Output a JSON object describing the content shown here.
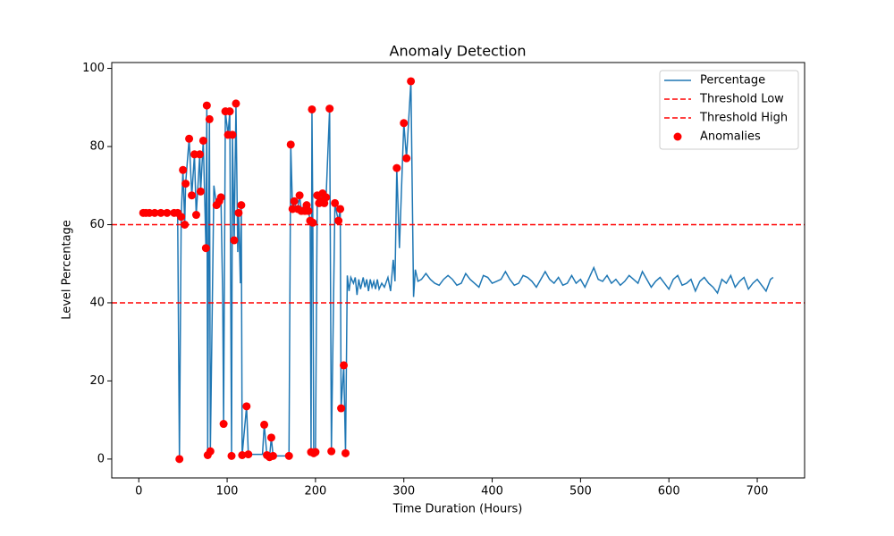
{
  "chart_data": {
    "type": "line",
    "title": "Anomaly Detection",
    "xlabel": "Time Duration (Hours)",
    "ylabel": "Level Percentage",
    "xlim": [
      -30.6,
      753.6
    ],
    "ylim": [
      -4.83,
      101.5
    ],
    "xticks": [
      0,
      100,
      200,
      300,
      400,
      500,
      600,
      700
    ],
    "yticks": [
      0,
      20,
      40,
      60,
      80,
      100
    ],
    "legend": "upper right",
    "series": [
      {
        "name": "Percentage",
        "color": "#1f77b4",
        "x": [
          5,
          8,
          12,
          18,
          25,
          32,
          40,
          44,
          46,
          48,
          50,
          52,
          53,
          57,
          60,
          63,
          65,
          67,
          69,
          70,
          73,
          76,
          77,
          78,
          79,
          80,
          81,
          85,
          88,
          91,
          93,
          95,
          96,
          98,
          101,
          103,
          105,
          106,
          108,
          110,
          112,
          113,
          115,
          116,
          117,
          122,
          124,
          140,
          142,
          145,
          148,
          150,
          152,
          170,
          172,
          174,
          176,
          178,
          180,
          182,
          184,
          186,
          188,
          190,
          192,
          194,
          195,
          196,
          197,
          198,
          200,
          202,
          204,
          206,
          208,
          210,
          212,
          216,
          218,
          222,
          224,
          226,
          228,
          229,
          232,
          234,
          236,
          238,
          240,
          243,
          245,
          247,
          249,
          251,
          254,
          256,
          258,
          260,
          262,
          264,
          266,
          268,
          270,
          272,
          275,
          278,
          282,
          285,
          288,
          290,
          292,
          295,
          300,
          303,
          308,
          311,
          313,
          316,
          320,
          325,
          330,
          335,
          340,
          345,
          350,
          355,
          360,
          365,
          370,
          375,
          380,
          385,
          390,
          395,
          400,
          405,
          410,
          415,
          420,
          425,
          430,
          435,
          440,
          445,
          450,
          455,
          460,
          465,
          470,
          475,
          480,
          485,
          490,
          495,
          500,
          505,
          510,
          515,
          520,
          525,
          530,
          535,
          540,
          545,
          550,
          555,
          560,
          565,
          570,
          575,
          580,
          585,
          590,
          595,
          600,
          605,
          610,
          615,
          620,
          625,
          630,
          635,
          640,
          645,
          650,
          655,
          660,
          665,
          670,
          675,
          680,
          685,
          690,
          695,
          700,
          705,
          710,
          715,
          718
        ],
        "values": [
          63,
          63,
          63,
          63,
          63,
          63,
          63,
          63,
          0,
          62,
          74,
          60,
          70.5,
          82,
          67.5,
          78,
          62.5,
          70,
          78,
          68.5,
          81.5,
          54,
          90.5,
          1,
          54,
          87,
          2,
          70,
          65,
          66,
          67,
          41,
          9,
          89,
          83,
          89,
          0.8,
          83,
          56,
          91,
          53,
          63,
          45,
          65,
          1,
          13.5,
          1.2,
          1.2,
          8.8,
          1,
          0.5,
          5.5,
          0.8,
          0.8,
          80.5,
          64,
          66,
          64,
          64,
          67.5,
          63.5,
          64.5,
          63.5,
          65,
          63.5,
          61,
          1.8,
          89.5,
          60.5,
          1.5,
          1.8,
          67.5,
          65.5,
          66,
          68,
          65.5,
          67,
          89.7,
          2,
          65.5,
          63,
          61,
          64,
          13,
          24,
          1.5,
          47,
          43,
          46.5,
          45,
          46.5,
          42,
          46,
          43.5,
          46.5,
          44,
          46,
          43,
          46,
          44,
          45.5,
          43.5,
          46,
          43.5,
          45,
          44,
          46.5,
          43,
          51,
          45.5,
          74.5,
          54,
          86,
          77,
          96.7,
          41.5,
          48.5,
          45.5,
          46,
          47.5,
          46,
          45,
          44.5,
          46,
          47,
          46,
          44.5,
          45,
          47.5,
          46,
          45,
          44,
          47,
          46.5,
          45,
          45.5,
          46,
          48,
          46,
          44.5,
          45,
          47,
          46.5,
          45.5,
          44,
          46,
          48,
          46,
          45,
          46.5,
          44.5,
          45,
          47,
          45,
          46,
          44,
          46.5,
          49,
          46,
          45.5,
          47,
          45,
          46,
          44.5,
          45.5,
          47,
          46,
          45,
          48,
          46,
          44,
          45.5,
          46.5,
          45,
          43.5,
          46,
          47,
          44.5,
          45,
          46,
          43,
          45.5,
          46.5,
          45,
          44,
          42.5,
          46,
          45,
          47,
          44,
          45.5,
          46.5,
          43.5,
          45,
          46,
          44.5,
          43,
          46,
          46.5
        ]
      }
    ],
    "hlines": [
      {
        "name": "Threshold Low",
        "value": 40,
        "color": "#ff0000"
      },
      {
        "name": "Threshold High",
        "value": 60,
        "color": "#ff0000"
      }
    ],
    "anomalies": {
      "name": "Anomalies",
      "color": "#ff0000",
      "x": [
        5,
        8,
        12,
        18,
        25,
        32,
        40,
        44,
        46,
        48,
        50,
        52,
        53,
        57,
        60,
        63,
        65,
        69,
        70,
        73,
        76,
        77,
        78,
        80,
        81,
        88,
        91,
        93,
        96,
        98,
        101,
        103,
        105,
        106,
        108,
        110,
        113,
        116,
        117,
        122,
        124,
        142,
        145,
        148,
        150,
        152,
        170,
        172,
        174,
        176,
        180,
        182,
        184,
        188,
        190,
        192,
        194,
        195,
        196,
        197,
        198,
        200,
        202,
        204,
        206,
        208,
        210,
        212,
        216,
        218,
        222,
        226,
        228,
        229,
        232,
        234,
        292,
        300,
        303,
        308
      ],
      "values": [
        63,
        63,
        63,
        63,
        63,
        63,
        63,
        63,
        0,
        62,
        74,
        60,
        70.5,
        82,
        67.5,
        78,
        62.5,
        78,
        68.5,
        81.5,
        54,
        90.5,
        1,
        87,
        2,
        65,
        66,
        67,
        9,
        89,
        83,
        89,
        0.8,
        83,
        56,
        91,
        63,
        65,
        1,
        13.5,
        1.2,
        8.8,
        1,
        0.5,
        5.5,
        0.8,
        0.8,
        80.5,
        64,
        66,
        64,
        67.5,
        63.5,
        63.5,
        65,
        63.5,
        61,
        1.8,
        89.5,
        60.5,
        1.5,
        1.8,
        67.5,
        65.5,
        66,
        68,
        65.5,
        67,
        89.7,
        2,
        65.5,
        61,
        64,
        13,
        24,
        1.5,
        74.5,
        86,
        77,
        96.7
      ]
    }
  }
}
